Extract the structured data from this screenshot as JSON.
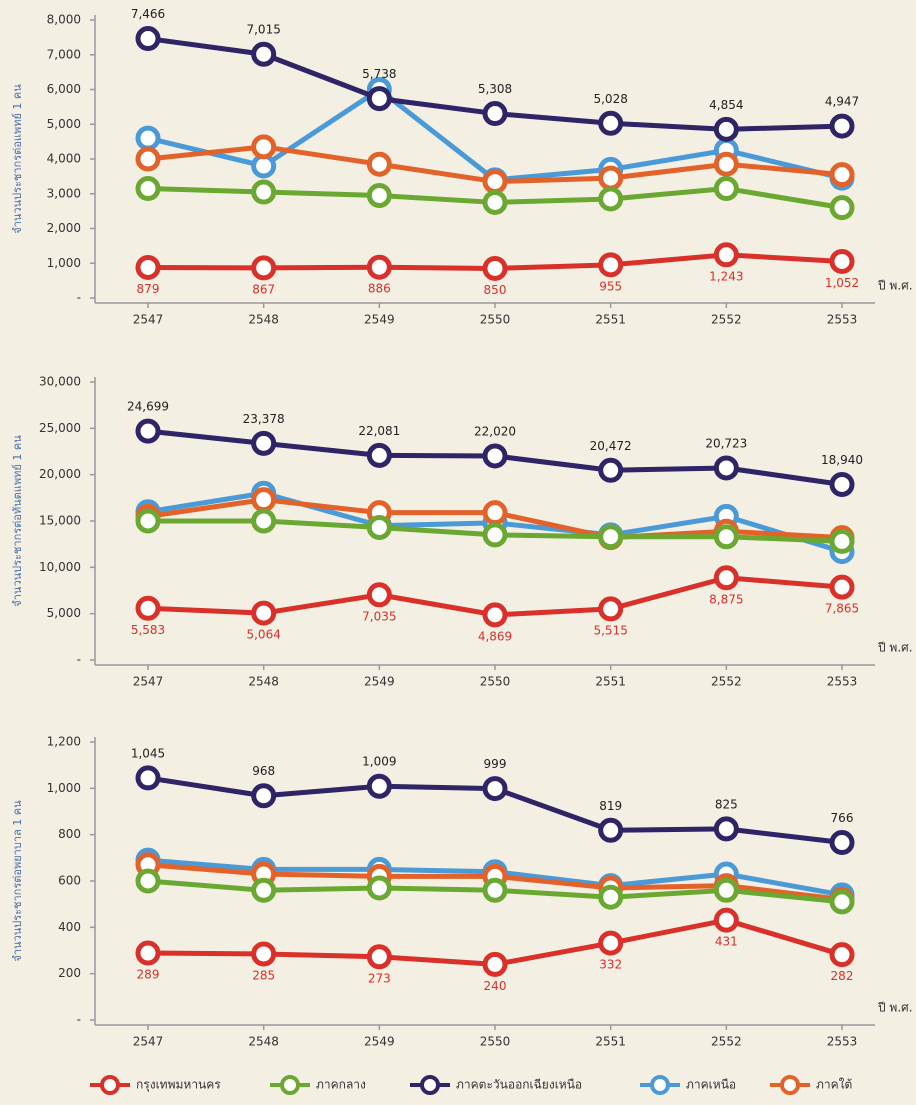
{
  "chart_data": [
    {
      "type": "line",
      "ylabel": "จำนวนประชากรต่อแพทย์ 1 คน",
      "xlabel": "ปี พ.ศ.",
      "categories": [
        "2547",
        "2548",
        "2549",
        "2550",
        "2551",
        "2552",
        "2553"
      ],
      "ylim": [
        0,
        8000
      ],
      "yticks": [
        {
          "value": 0,
          "label": "-"
        },
        {
          "value": 1000,
          "label": "1,000"
        },
        {
          "value": 2000,
          "label": "2,000"
        },
        {
          "value": 3000,
          "label": "3,000"
        },
        {
          "value": 4000,
          "label": "4,000"
        },
        {
          "value": 5000,
          "label": "5,000"
        },
        {
          "value": 6000,
          "label": "6,000"
        },
        {
          "value": 7000,
          "label": "7,000"
        },
        {
          "value": 8000,
          "label": "8,000"
        }
      ],
      "series": [
        {
          "name": "กรุงเทพมหานคร",
          "color": "#d9302a",
          "values": [
            879,
            867,
            886,
            850,
            955,
            1243,
            1052
          ],
          "value_labels": [
            "879",
            "867",
            "886",
            "850",
            "955",
            "1,243",
            "1,052"
          ]
        },
        {
          "name": "ภาคกลาง",
          "color": "#6aa832",
          "values": [
            3150,
            3050,
            2950,
            2750,
            2850,
            3150,
            2600
          ]
        },
        {
          "name": "ภาคตะวันออกเฉียงเหนือ",
          "color": "#2e2466",
          "values": [
            7466,
            7015,
            5738,
            5308,
            5028,
            4854,
            4947
          ],
          "value_labels": [
            "7,466",
            "7,015",
            "5,738",
            "5,308",
            "5,028",
            "4,854",
            "4,947"
          ]
        },
        {
          "name": "ภาคเหนือ",
          "color": "#4a9ad8",
          "values": [
            4600,
            3800,
            6000,
            3400,
            3700,
            4250,
            3450
          ]
        },
        {
          "name": "ภาคใต้",
          "color": "#e2622a",
          "values": [
            4000,
            4350,
            3850,
            3350,
            3450,
            3850,
            3550
          ]
        }
      ]
    },
    {
      "type": "line",
      "ylabel": "จำนวนประชากรต่อทันตแพทย์ 1 คน",
      "xlabel": "ปี พ.ศ.",
      "categories": [
        "2547",
        "2548",
        "2549",
        "2550",
        "2551",
        "2552",
        "2553"
      ],
      "ylim": [
        0,
        30000
      ],
      "yticks": [
        {
          "value": 0,
          "label": "-"
        },
        {
          "value": 5000,
          "label": "5,000"
        },
        {
          "value": 10000,
          "label": "10,000"
        },
        {
          "value": 15000,
          "label": "15,000"
        },
        {
          "value": 20000,
          "label": "20,000"
        },
        {
          "value": 25000,
          "label": "25,000"
        },
        {
          "value": 30000,
          "label": "30,000"
        }
      ],
      "series": [
        {
          "name": "กรุงเทพมหานคร",
          "color": "#d9302a",
          "values": [
            5583,
            5064,
            7035,
            4869,
            5515,
            8875,
            7865
          ],
          "value_labels": [
            "5,583",
            "5,064",
            "7,035",
            "4,869",
            "5,515",
            "8,875",
            "7,865"
          ]
        },
        {
          "name": "ภาคกลาง",
          "color": "#6aa832",
          "values": [
            15000,
            15000,
            14300,
            13500,
            13300,
            13300,
            12800
          ]
        },
        {
          "name": "ภาคตะวันออกเฉียงเหนือ",
          "color": "#2e2466",
          "values": [
            24699,
            23378,
            22081,
            22020,
            20472,
            20723,
            18940
          ],
          "value_labels": [
            "24,699",
            "23,378",
            "22,081",
            "22,020",
            "20,472",
            "20,723",
            "18,940"
          ]
        },
        {
          "name": "ภาคเหนือ",
          "color": "#4a9ad8",
          "values": [
            16000,
            18000,
            14500,
            14800,
            13500,
            15500,
            11700
          ]
        },
        {
          "name": "ภาคใต้",
          "color": "#e2622a",
          "values": [
            15500,
            17300,
            15900,
            15900,
            13200,
            13900,
            13200
          ]
        }
      ]
    },
    {
      "type": "line",
      "ylabel": "จำนวนประชากรต่อพยาบาล 1 คน",
      "xlabel": "ปี พ.ศ.",
      "categories": [
        "2547",
        "2548",
        "2549",
        "2550",
        "2551",
        "2552",
        "2553"
      ],
      "ylim": [
        0,
        1200
      ],
      "yticks": [
        {
          "value": 0,
          "label": "-"
        },
        200,
        400,
        600,
        800,
        {
          "value": 1000,
          "label": "1,000"
        },
        {
          "value": 1200,
          "label": "1,200"
        }
      ],
      "series": [
        {
          "name": "กรุงเทพมหานคร",
          "color": "#d9302a",
          "values": [
            289,
            285,
            273,
            240,
            332,
            431,
            282
          ],
          "value_labels": [
            "289",
            "285",
            "273",
            "240",
            "332",
            "431",
            "282"
          ]
        },
        {
          "name": "ภาคกลาง",
          "color": "#6aa832",
          "values": [
            600,
            560,
            570,
            560,
            530,
            560,
            510
          ]
        },
        {
          "name": "ภาคตะวันออกเฉียงเหนือ",
          "color": "#2e2466",
          "values": [
            1045,
            968,
            1009,
            999,
            819,
            825,
            766
          ],
          "value_labels": [
            "1,045",
            "968",
            "1,009",
            "999",
            "819",
            "825",
            "766"
          ]
        },
        {
          "name": "ภาคเหนือ",
          "color": "#4a9ad8",
          "values": [
            690,
            650,
            650,
            640,
            580,
            630,
            540
          ]
        },
        {
          "name": "ภาคใต้",
          "color": "#e2622a",
          "values": [
            670,
            630,
            620,
            620,
            570,
            580,
            520
          ]
        }
      ]
    }
  ]
}
